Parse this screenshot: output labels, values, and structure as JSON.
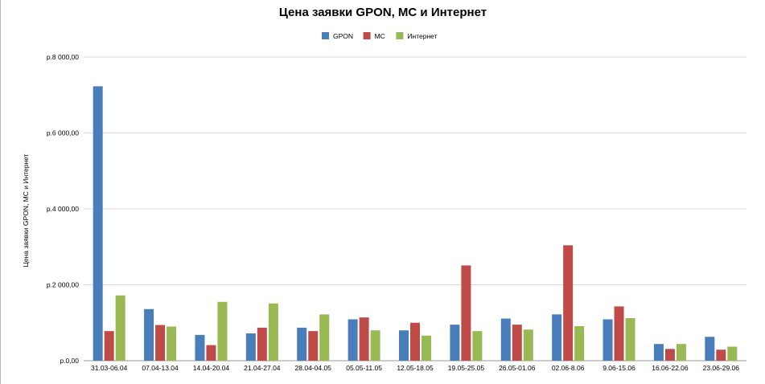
{
  "chart_data": {
    "type": "bar",
    "title": "Цена заявки GPON, МС и Интернет",
    "xlabel": "",
    "ylabel": "Цена заявки GPON, МС и Интернет",
    "ylim": [
      0,
      8000
    ],
    "yticks": [
      0,
      2000,
      4000,
      6000,
      8000
    ],
    "ytick_labels": [
      "р.0,00",
      "р.2 000,00",
      "р.4 000,00",
      "р.6 000,00",
      "р.8 000,00"
    ],
    "grid": true,
    "legend_position": "top-center",
    "categories": [
      "31.03-06.04",
      "07.04-13.04",
      "14.04-20.04",
      "21.04-27.04",
      "28.04-04.05",
      "05.05-11.05",
      "12.05-18.05",
      "19.05-25.05",
      "26.05-01.06",
      "02.06-8.06",
      "9.06-15.06",
      "16.06-22.06",
      "23.06-29.06"
    ],
    "series": [
      {
        "name": "GPON",
        "color": "#4a7ebb",
        "values": [
          7230,
          1360,
          680,
          720,
          870,
          1090,
          800,
          950,
          1110,
          1220,
          1090,
          440,
          630
        ]
      },
      {
        "name": "МС",
        "color": "#be4b48",
        "values": [
          780,
          940,
          410,
          870,
          780,
          1140,
          1000,
          2510,
          950,
          3040,
          1430,
          310,
          290
        ]
      },
      {
        "name": "Интернет",
        "color": "#98b954",
        "values": [
          1720,
          900,
          1550,
          1510,
          1220,
          800,
          660,
          780,
          820,
          910,
          1120,
          440,
          370
        ]
      }
    ]
  }
}
